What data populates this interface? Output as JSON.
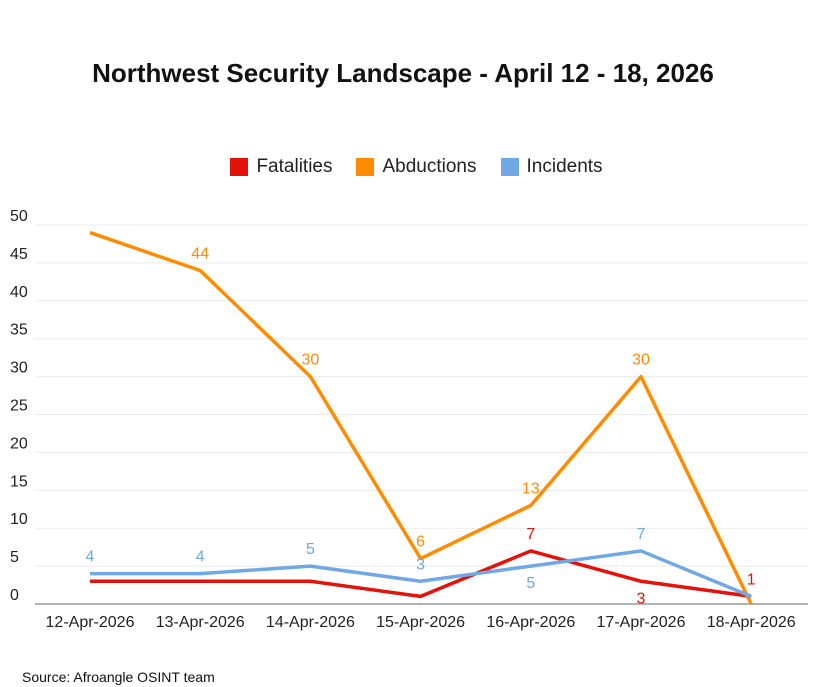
{
  "chart_data": {
    "type": "line",
    "title": "Northwest Security Landscape - April 12 - 18, 2026",
    "categories": [
      "12-Apr-2026",
      "13-Apr-2026",
      "14-Apr-2026",
      "15-Apr-2026",
      "16-Apr-2026",
      "17-Apr-2026",
      "18-Apr-2026"
    ],
    "ylim": [
      0,
      50
    ],
    "yticks": [
      0,
      5,
      10,
      15,
      20,
      25,
      30,
      35,
      40,
      45,
      50
    ],
    "grid": true,
    "legend": "top",
    "series": [
      {
        "name": "Fatalities",
        "color": "#e3120b",
        "values": [
          3,
          3,
          3,
          1,
          7,
          3,
          1
        ],
        "labels": [
          null,
          null,
          null,
          null,
          "7",
          "3",
          "1"
        ]
      },
      {
        "name": "Abductions",
        "color": "#ff8c00",
        "values": [
          49,
          44,
          30,
          6,
          13,
          30,
          0
        ],
        "labels": [
          null,
          "44",
          "30",
          "6",
          "13",
          "30",
          null
        ]
      },
      {
        "name": "Incidents",
        "color": "#6fa8e4",
        "values": [
          4,
          4,
          5,
          3,
          5,
          7,
          1
        ],
        "labels": [
          "4",
          "4",
          "5",
          "3",
          "5",
          "7",
          null
        ]
      }
    ]
  },
  "source": "Source: Afroangle OSINT team"
}
